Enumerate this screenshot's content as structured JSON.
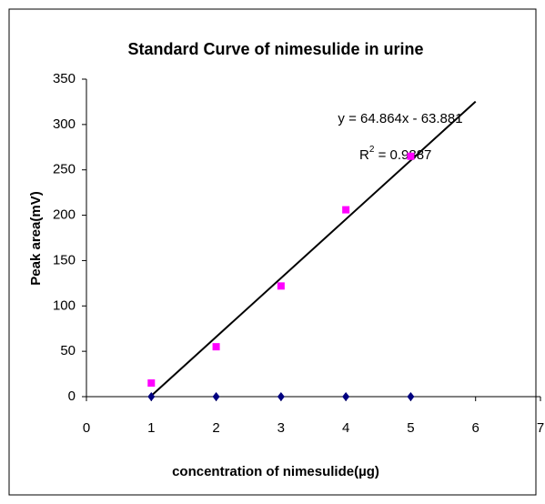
{
  "chart_data": {
    "type": "scatter",
    "title": "Standard Curve of nimesulide in urine",
    "xlabel": "concentration of nimesulide(µg)",
    "ylabel": "Peak area(mV)",
    "series": [
      {
        "color": "#ff00ff",
        "marker": "square",
        "x": [
          1,
          2,
          3,
          4,
          5
        ],
        "values": [
          15,
          55,
          122,
          206,
          265
        ]
      },
      {
        "color": "#000080",
        "marker": "diamond",
        "x": [
          1,
          2,
          3,
          4,
          5
        ],
        "values": [
          0,
          0,
          0,
          0,
          0
        ]
      }
    ],
    "trendline": {
      "slope": 64.864,
      "intercept": -63.881,
      "x_range": [
        0.985,
        6
      ],
      "color": "#000000",
      "equation": "y = 64.864x - 63.881",
      "r2": {
        "symbol": "R",
        "power": "2",
        "value_text": " = 0.9887"
      }
    },
    "xlim": [
      0,
      7
    ],
    "xticks": [
      0,
      1,
      2,
      3,
      4,
      5,
      6,
      7
    ],
    "ylim": [
      0,
      350
    ],
    "yticks": [
      0,
      50,
      100,
      150,
      200,
      250,
      300,
      350
    ],
    "grid": false
  }
}
